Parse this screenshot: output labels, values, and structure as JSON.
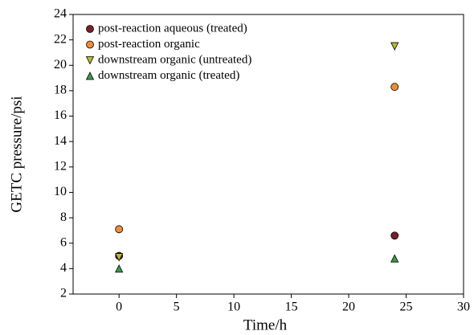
{
  "chart_data": {
    "type": "scatter",
    "xlabel": "Time/h",
    "ylabel": "GETC pressure/psi",
    "xlim": [
      -4,
      30
    ],
    "ylim": [
      2,
      24
    ],
    "xticks": [
      0,
      5,
      10,
      15,
      20,
      25,
      30
    ],
    "yticks": [
      2,
      4,
      6,
      8,
      10,
      12,
      14,
      16,
      18,
      20,
      22,
      24
    ],
    "legend": "upper left",
    "series": [
      {
        "name": "post-reaction aqueous (treated)",
        "color": "#7b1f2a",
        "marker": "o",
        "x": [
          0,
          24
        ],
        "values": [
          5.0,
          6.6
        ]
      },
      {
        "name": "post-reaction organic",
        "color": "#f28c38",
        "marker": "o",
        "x": [
          0,
          24
        ],
        "values": [
          7.1,
          18.3
        ]
      },
      {
        "name": "downstream organic (untreated)",
        "color": "#b8bb2e",
        "marker": "v",
        "x": [
          0,
          24
        ],
        "values": [
          4.9,
          21.5
        ]
      },
      {
        "name": "downstream organic (treated)",
        "color": "#3a9a4a",
        "marker": "^",
        "x": [
          0,
          24
        ],
        "values": [
          4.0,
          4.8
        ]
      }
    ]
  }
}
